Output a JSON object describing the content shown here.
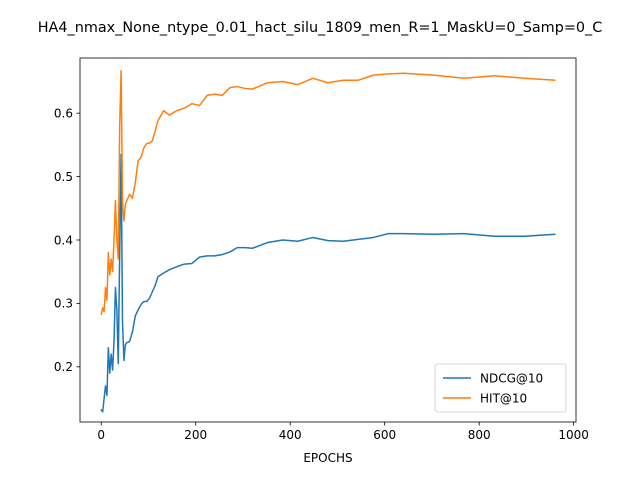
{
  "chart_data": {
    "type": "line",
    "title": "HA4_nmax_None_ntype_0.01_hact_silu_1809_men_R=1_MaskU=0_Samp=0_C",
    "xlabel": "EPOCHS",
    "ylabel": "",
    "xlim": [
      -45,
      1005
    ],
    "ylim": [
      0.113,
      0.687
    ],
    "xticks": [
      0,
      200,
      400,
      600,
      800,
      1000
    ],
    "yticks": [
      0.2,
      0.3,
      0.4,
      0.5,
      0.6
    ],
    "xtick_labels": [
      "0",
      "200",
      "400",
      "600",
      "800",
      "1000"
    ],
    "ytick_labels": [
      "0.2",
      "0.3",
      "0.4",
      "0.5",
      "0.6"
    ],
    "grid": false,
    "legend_position": "lower right",
    "series": [
      {
        "name": "NDCG@10",
        "color": "#1f77b4",
        "x": [
          0,
          3,
          6,
          9,
          12,
          15,
          18,
          21,
          24,
          27,
          30,
          33,
          36,
          39,
          42,
          45,
          48,
          51,
          54,
          60,
          66,
          72,
          78,
          84,
          90,
          96,
          102,
          108,
          114,
          120,
          132,
          144,
          160,
          176,
          192,
          208,
          224,
          240,
          256,
          272,
          288,
          304,
          320,
          352,
          384,
          416,
          448,
          480,
          512,
          544,
          576,
          608,
          640,
          704,
          768,
          832,
          896,
          960
        ],
        "y": [
          0.132,
          0.129,
          0.15,
          0.17,
          0.155,
          0.23,
          0.19,
          0.22,
          0.195,
          0.24,
          0.325,
          0.29,
          0.205,
          0.38,
          0.535,
          0.27,
          0.21,
          0.235,
          0.238,
          0.24,
          0.255,
          0.28,
          0.29,
          0.298,
          0.303,
          0.303,
          0.308,
          0.318,
          0.328,
          0.342,
          0.348,
          0.353,
          0.358,
          0.362,
          0.363,
          0.373,
          0.375,
          0.375,
          0.377,
          0.381,
          0.388,
          0.388,
          0.387,
          0.396,
          0.4,
          0.398,
          0.404,
          0.399,
          0.398,
          0.401,
          0.404,
          0.41,
          0.41,
          0.409,
          0.41,
          0.406,
          0.406,
          0.409
        ]
      },
      {
        "name": "HIT@10",
        "color": "#ff7f0e",
        "x": [
          0,
          3,
          6,
          9,
          12,
          15,
          18,
          21,
          24,
          27,
          30,
          33,
          36,
          39,
          42,
          45,
          48,
          51,
          54,
          60,
          66,
          72,
          78,
          84,
          90,
          96,
          102,
          108,
          114,
          120,
          132,
          144,
          160,
          176,
          192,
          208,
          224,
          240,
          256,
          272,
          288,
          304,
          320,
          352,
          384,
          416,
          448,
          480,
          512,
          544,
          576,
          608,
          640,
          704,
          768,
          832,
          896,
          960
        ],
        "y": [
          0.283,
          0.293,
          0.287,
          0.325,
          0.305,
          0.38,
          0.345,
          0.37,
          0.35,
          0.4,
          0.462,
          0.4,
          0.37,
          0.58,
          0.667,
          0.46,
          0.43,
          0.456,
          0.462,
          0.472,
          0.466,
          0.49,
          0.525,
          0.53,
          0.545,
          0.552,
          0.553,
          0.556,
          0.572,
          0.588,
          0.604,
          0.597,
          0.604,
          0.608,
          0.615,
          0.612,
          0.628,
          0.63,
          0.628,
          0.64,
          0.642,
          0.639,
          0.638,
          0.648,
          0.65,
          0.645,
          0.655,
          0.648,
          0.652,
          0.652,
          0.66,
          0.662,
          0.663,
          0.66,
          0.655,
          0.659,
          0.655,
          0.652
        ]
      }
    ]
  }
}
